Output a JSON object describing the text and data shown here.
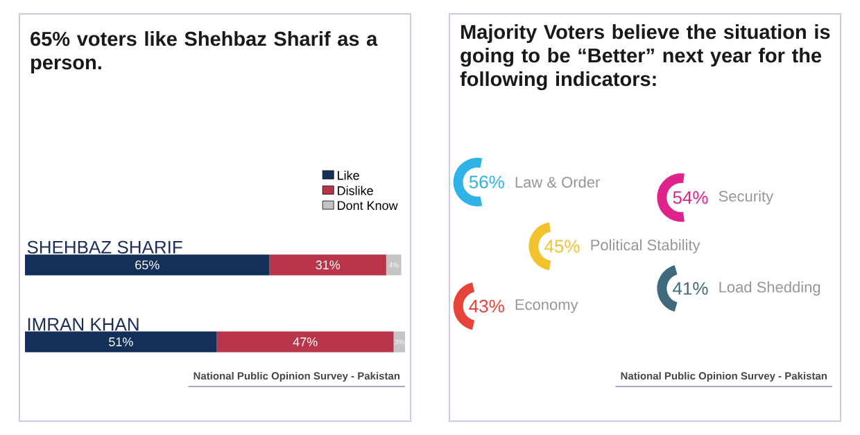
{
  "chart_data": [
    {
      "type": "bar",
      "orientation": "horizontal",
      "stacked": true,
      "title": "65% voters like Shehbaz Sharif as a person.",
      "categories": [
        "SHEHBAZ SHARIF",
        "IMRAN KHAN"
      ],
      "series": [
        {
          "name": "Like",
          "color": "#12305a",
          "values": [
            65,
            51
          ],
          "value_labels": [
            "65%",
            "51%"
          ]
        },
        {
          "name": "Dislike",
          "color": "#b8354a",
          "values": [
            31,
            47
          ],
          "value_labels": [
            "31%",
            "47%"
          ]
        },
        {
          "name": "Dont Know",
          "color": "#c4c4c4",
          "values": [
            4,
            3
          ],
          "value_labels": [
            "4%",
            "3%"
          ]
        }
      ],
      "xlim": [
        0,
        101
      ],
      "legend": "top right",
      "annotations": [
        "National Public Opinion Survey - Pakistan"
      ]
    },
    {
      "type": "other",
      "title": "Majority Voters believe the situation is going to be “Better” next year for the following indicators:",
      "categories": [
        "Law & Order",
        "Security",
        "Political Stability",
        "Economy",
        "Load Shedding"
      ],
      "values": [
        56,
        54,
        45,
        43,
        41
      ],
      "value_labels": [
        "56%",
        "54%",
        "45%",
        "43%",
        "41%"
      ],
      "colors": [
        "#2fb3e6",
        "#e0238c",
        "#f2c12e",
        "#e8433a",
        "#3f6a7c"
      ],
      "annotations": [
        "National Public Opinion Survey - Pakistan"
      ]
    }
  ]
}
